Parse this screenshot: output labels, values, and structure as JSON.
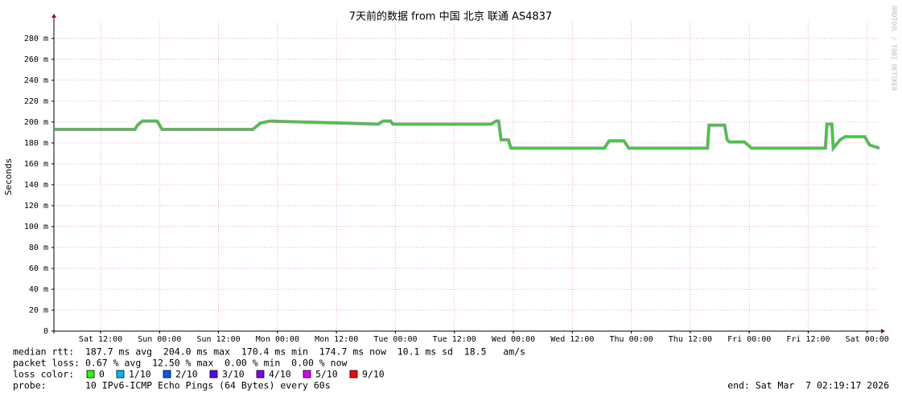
{
  "chart_data": {
    "type": "line",
    "title": "7天前的数据 from 中国 北京 联通 AS4837",
    "y_label": "Seconds",
    "watermark": "RRDTOOL / TOBI OETIKER",
    "xlim": [
      0,
      168
    ],
    "xticks": [
      {
        "value": 9.5,
        "label": "Sat 12:00"
      },
      {
        "value": 21.5,
        "label": "Sun 00:00"
      },
      {
        "value": 33.5,
        "label": "Sun 12:00"
      },
      {
        "value": 45.5,
        "label": "Mon 00:00"
      },
      {
        "value": 57.5,
        "label": "Mon 12:00"
      },
      {
        "value": 69.5,
        "label": "Tue 00:00"
      },
      {
        "value": 81.5,
        "label": "Tue 12:00"
      },
      {
        "value": 93.5,
        "label": "Wed 00:00"
      },
      {
        "value": 105.5,
        "label": "Wed 12:00"
      },
      {
        "value": 117.5,
        "label": "Thu 00:00"
      },
      {
        "value": 129.5,
        "label": "Thu 12:00"
      },
      {
        "value": 141.5,
        "label": "Fri 00:00"
      },
      {
        "value": 153.5,
        "label": "Fri 12:00"
      },
      {
        "value": 165.5,
        "label": "Sat 00:00"
      }
    ],
    "ylim": [
      0,
      0.296
    ],
    "yticks": [
      0,
      {
        "value": 0.02,
        "label": "20 m"
      },
      {
        "value": 0.04,
        "label": "40 m"
      },
      {
        "value": 0.06,
        "label": "60 m"
      },
      {
        "value": 0.08,
        "label": "80 m"
      },
      {
        "value": 0.1,
        "label": "100 m"
      },
      {
        "value": 0.12,
        "label": "120 m"
      },
      {
        "value": 0.14,
        "label": "140 m"
      },
      {
        "value": 0.16,
        "label": "160 m"
      },
      {
        "value": 0.18,
        "label": "180 m"
      },
      {
        "value": 0.2,
        "label": "200 m"
      },
      {
        "value": 0.22,
        "label": "220 m"
      },
      {
        "value": 0.24,
        "label": "240 m"
      },
      {
        "value": 0.26,
        "label": "260 m"
      },
      {
        "value": 0.28,
        "label": "280 m"
      }
    ],
    "grid": true,
    "x": [
      0,
      16.5,
      17,
      18,
      21,
      22,
      40.5,
      42,
      44,
      66,
      67,
      68.5,
      69,
      89,
      90,
      90.5,
      91,
      92.5,
      93,
      112,
      113,
      116,
      117,
      133,
      133.3,
      136.5,
      137,
      137.5,
      140.5,
      142,
      157,
      157.3,
      158.3,
      158.6,
      160,
      161,
      165,
      166,
      168
    ],
    "color": "#22dd22",
    "values": [
      0.193,
      0.193,
      0.197,
      0.201,
      0.201,
      0.193,
      0.193,
      0.199,
      0.201,
      0.198,
      0.201,
      0.201,
      0.198,
      0.198,
      0.201,
      0.201,
      0.183,
      0.183,
      0.175,
      0.175,
      0.182,
      0.182,
      0.175,
      0.175,
      0.197,
      0.197,
      0.183,
      0.181,
      0.181,
      0.175,
      0.175,
      0.198,
      0.198,
      0.175,
      0.183,
      0.186,
      0.186,
      0.178,
      0.175
    ],
    "stats": {
      "median_rtt": "median rtt:  187.7 ms avg  204.0 ms max  170.4 ms min  174.7 ms now  10.1 ms sd  18.5   am/s",
      "packet_loss": "packet loss: 0.67 % avg  12.50 % max  0.00 % min  0.00 % now",
      "loss_color_label": "loss color:",
      "probe": "probe:       10 IPv6-ICMP Echo Pings (64 Bytes) every 60s",
      "end": "end: Sat Mar  7 02:19:17 2026"
    },
    "loss_colors": [
      {
        "label": "0",
        "color": "#26ff00"
      },
      {
        "label": "1/10",
        "color": "#00b8ff"
      },
      {
        "label": "2/10",
        "color": "#0059ff"
      },
      {
        "label": "3/10",
        "color": "#5e00ff"
      },
      {
        "label": "4/10",
        "color": "#7e00ff"
      },
      {
        "label": "5/10",
        "color": "#dd00ff"
      },
      {
        "label": "9/10",
        "color": "#ff0000"
      }
    ]
  }
}
